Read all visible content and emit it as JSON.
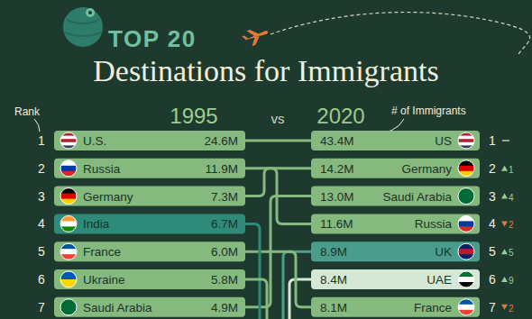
{
  "chart_data": {
    "type": "bump",
    "title_prefix": "TOP 20",
    "title": "Destinations for Immigrants",
    "axis_label": "Rank",
    "series_label": "# of Immigrants",
    "vs": "vs",
    "columns": [
      {
        "name": "1995",
        "rows": [
          {
            "rank": 1,
            "country": "U.S.",
            "value": "24.6M",
            "color": "#86b97e",
            "colors": [
              "#b22234",
              "#ffffff",
              "#b22234",
              "#ffffff",
              "#3c3b6e"
            ]
          },
          {
            "rank": 2,
            "country": "Russia",
            "value": "11.9M",
            "color": "#86b97e",
            "colors": [
              "#ffffff",
              "#0039a6",
              "#d52b1e"
            ]
          },
          {
            "rank": 3,
            "country": "Germany",
            "value": "7.3M",
            "color": "#86b97e",
            "colors": [
              "#000000",
              "#dd0000",
              "#ffce00"
            ]
          },
          {
            "rank": 4,
            "country": "India",
            "value": "6.7M",
            "color": "#2e8b7a",
            "colors": [
              "#ff9933",
              "#ffffff",
              "#138808"
            ]
          },
          {
            "rank": 5,
            "country": "France",
            "value": "6.0M",
            "color": "#86b97e",
            "colors": [
              "#0055a4",
              "#ffffff",
              "#ef4135"
            ]
          },
          {
            "rank": 6,
            "country": "Ukraine",
            "value": "5.8M",
            "color": "#86b97e",
            "colors": [
              "#0057b7",
              "#ffd700"
            ]
          },
          {
            "rank": 7,
            "country": "Saudi Arabia",
            "value": "4.9M",
            "color": "#86b97e",
            "colors": [
              "#006c35"
            ]
          }
        ]
      },
      {
        "name": "2020",
        "rows": [
          {
            "rank": 1,
            "country": "US",
            "value": "43.4M",
            "change": 0,
            "color": "#86b97e",
            "colors": [
              "#b22234",
              "#ffffff",
              "#b22234",
              "#ffffff",
              "#3c3b6e"
            ]
          },
          {
            "rank": 2,
            "country": "Germany",
            "value": "14.2M",
            "change": 1,
            "color": "#86b97e",
            "colors": [
              "#000000",
              "#dd0000",
              "#ffce00"
            ]
          },
          {
            "rank": 3,
            "country": "Saudi Arabia",
            "value": "13.0M",
            "change": 4,
            "color": "#86b97e",
            "colors": [
              "#006c35"
            ]
          },
          {
            "rank": 4,
            "country": "Russia",
            "value": "11.6M",
            "change": -2,
            "color": "#86b97e",
            "colors": [
              "#ffffff",
              "#0039a6",
              "#d52b1e"
            ]
          },
          {
            "rank": 5,
            "country": "UK",
            "value": "8.9M",
            "change": 5,
            "color": "#4a9d8c",
            "colors": [
              "#012169",
              "#c8102e",
              "#012169"
            ]
          },
          {
            "rank": 6,
            "country": "UAE",
            "value": "8.4M",
            "change": 9,
            "color": "#d5e8d5",
            "colors": [
              "#00732f",
              "#ffffff",
              "#000000"
            ]
          },
          {
            "rank": 7,
            "country": "France",
            "value": "8.1M",
            "change": -2,
            "color": "#86b97e",
            "colors": [
              "#0055a4",
              "#ffffff",
              "#ef4135"
            ]
          }
        ]
      }
    ]
  }
}
